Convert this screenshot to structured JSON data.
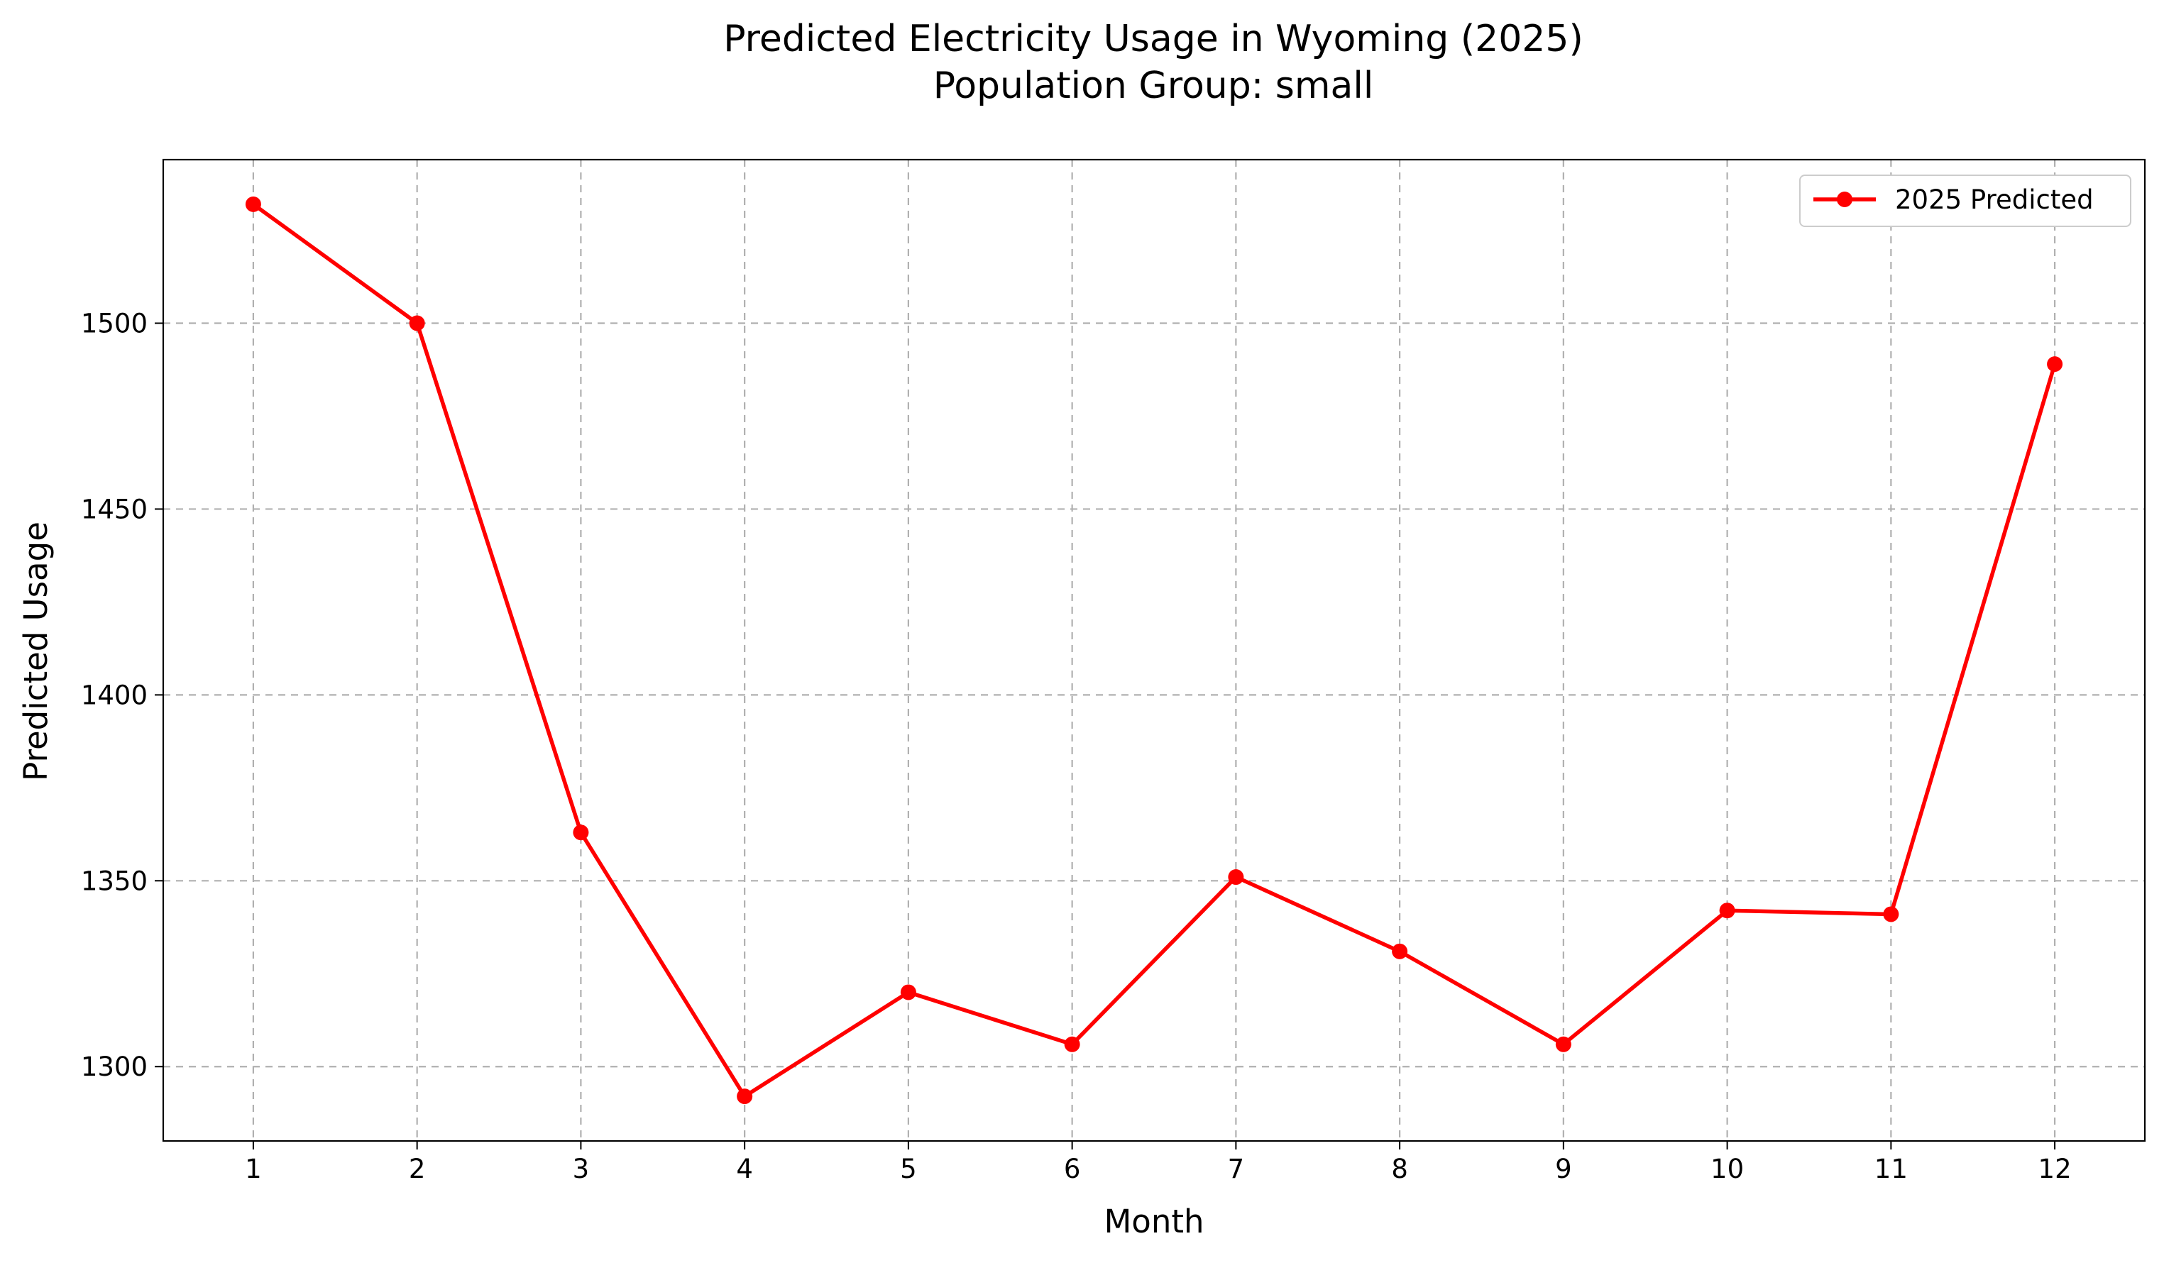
{
  "chart_data": {
    "type": "line",
    "title": "Predicted Electricity Usage in Wyoming (2025)",
    "subtitle": "Population Group: small",
    "xlabel": "Month",
    "ylabel": "Predicted Usage",
    "x": [
      1,
      2,
      3,
      4,
      5,
      6,
      7,
      8,
      9,
      10,
      11,
      12
    ],
    "x_tick_labels": [
      "1",
      "2",
      "3",
      "4",
      "5",
      "6",
      "7",
      "8",
      "9",
      "10",
      "11",
      "12"
    ],
    "xlim": [
      0.45,
      12.55
    ],
    "ylim": [
      1280,
      1544
    ],
    "y_ticks": [
      1300,
      1350,
      1400,
      1450,
      1500
    ],
    "y_tick_labels": [
      "1300",
      "1350",
      "1400",
      "1450",
      "1500"
    ],
    "series": [
      {
        "name": "2025 Predicted",
        "color": "#ff0000",
        "marker": "circle",
        "values": [
          1532,
          1500,
          1363,
          1292,
          1320,
          1306,
          1351,
          1331,
          1306,
          1342,
          1341,
          1489
        ]
      }
    ],
    "grid": true,
    "legend_position": "top-right"
  }
}
